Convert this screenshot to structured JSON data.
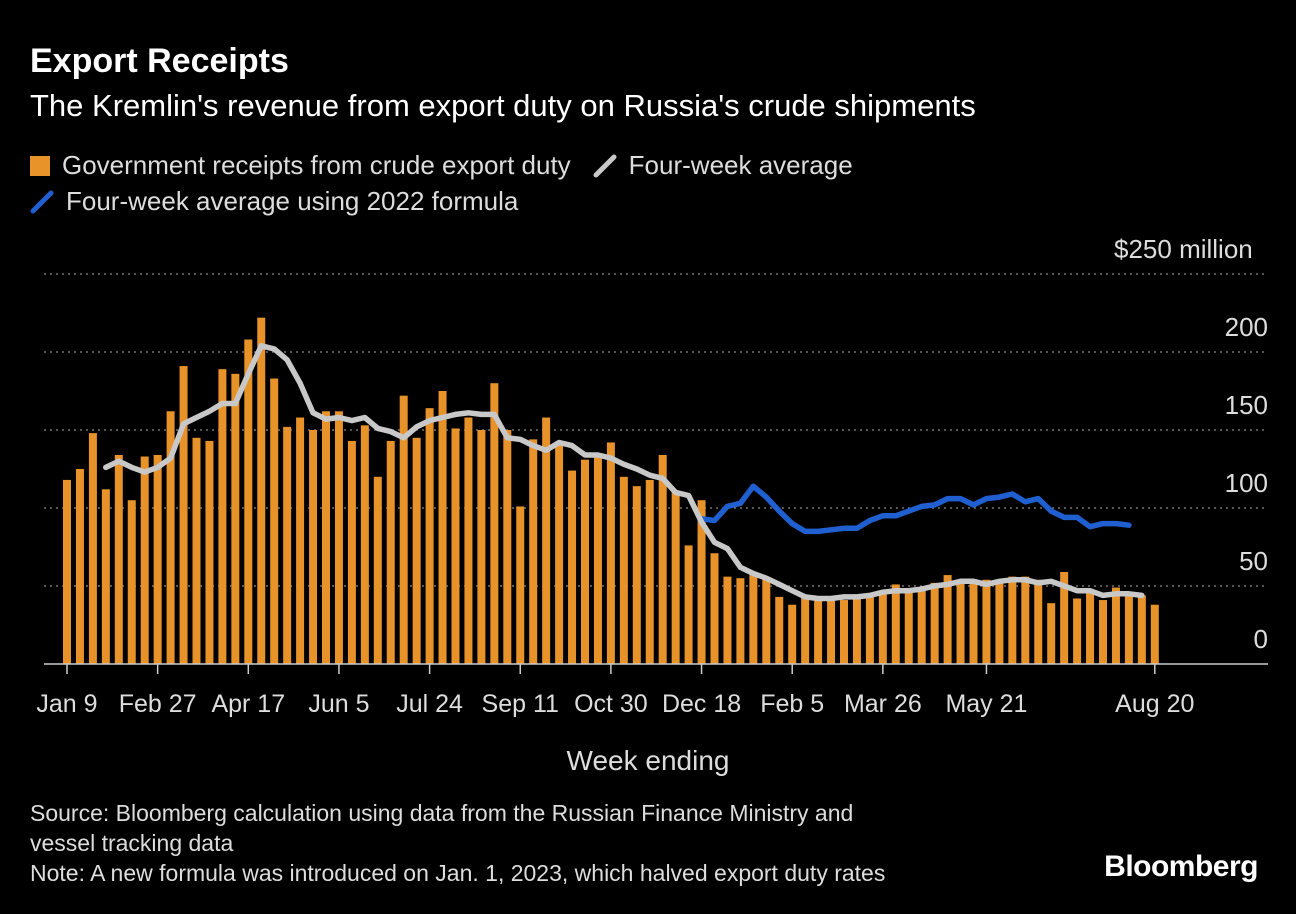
{
  "header": {
    "title": "Export Receipts",
    "subtitle": "The Kremlin's revenue from export duty on Russia's crude shipments"
  },
  "legend": {
    "bars": "Government receipts from crude export duty",
    "avg": "Four-week average",
    "avg2022": "Four-week average using 2022 formula"
  },
  "colors": {
    "bars": "#e8922a",
    "avg": "#c8c8c8",
    "avg2022": "#1f5fd0",
    "grid": "#8a8a8a",
    "text": "#dddddd"
  },
  "footer": {
    "source_line1": "Source: Bloomberg calculation using data from the Russian Finance Ministry and",
    "source_line2": "vessel tracking data",
    "note": "Note: A new formula was introduced on Jan. 1, 2023, which halved export duty rates",
    "brand": "Bloomberg"
  },
  "chart_data": {
    "type": "bar",
    "title": "Export Receipts",
    "xlabel": "Week ending",
    "ylabel": "",
    "y_unit_label": "$250 million",
    "ylim": [
      0,
      250
    ],
    "yticks": [
      0,
      50,
      100,
      150,
      200,
      250
    ],
    "ytick_labels": [
      "0",
      "50",
      "100",
      "150",
      "200",
      "$250"
    ],
    "x_tick_labels": [
      "Jan 9",
      "Feb 27",
      "Apr 17",
      "Jun 5",
      "Jul 24",
      "Sep 11",
      "Oct 30",
      "Dec 18",
      "Feb 5",
      "Mar 26",
      "May 21",
      "Aug 20"
    ],
    "x_tick_indices": [
      0,
      7,
      14,
      21,
      28,
      35,
      42,
      49,
      56,
      63,
      71,
      84
    ],
    "grid": true,
    "series": [
      {
        "name": "Government receipts from crude export duty",
        "type": "bar",
        "values": [
          118,
          125,
          148,
          112,
          134,
          105,
          133,
          134,
          162,
          191,
          145,
          143,
          189,
          186,
          208,
          222,
          183,
          152,
          158,
          150,
          162,
          162,
          143,
          153,
          120,
          143,
          172,
          145,
          164,
          175,
          151,
          158,
          150,
          180,
          150,
          101,
          144,
          158,
          142,
          124,
          131,
          133,
          142,
          120,
          114,
          118,
          134,
          111,
          76,
          105,
          71,
          56,
          55,
          57,
          54,
          43,
          38,
          43,
          43,
          42,
          41,
          44,
          44,
          46,
          51,
          48,
          49,
          52,
          57,
          53,
          54,
          54,
          52,
          56,
          56,
          54,
          39,
          59,
          42,
          46,
          41,
          49,
          46,
          44,
          38
        ]
      },
      {
        "name": "Four-week average",
        "type": "line",
        "x_start_index": 3,
        "values": [
          126,
          130,
          126,
          123,
          126,
          132,
          154,
          158,
          162,
          167,
          167,
          186,
          204,
          202,
          195,
          180,
          161,
          157,
          158,
          156,
          158,
          151,
          149,
          145,
          152,
          156,
          158,
          160,
          161,
          160,
          160,
          145,
          144,
          140,
          137,
          142,
          140,
          134,
          134,
          132,
          128,
          125,
          121,
          119,
          110,
          108,
          91,
          78,
          74,
          62,
          58,
          55,
          51,
          47,
          43,
          42,
          42,
          43,
          43,
          44,
          46,
          47,
          47,
          48,
          50,
          51,
          53,
          53,
          51,
          53,
          54,
          54,
          52,
          53,
          50,
          47,
          47,
          44,
          45,
          45,
          44
        ]
      },
      {
        "name": "Four-week average using 2022 formula",
        "type": "line",
        "x_start_index": 49,
        "values": [
          93,
          92,
          101,
          103,
          114,
          107,
          98,
          90,
          85,
          85,
          86,
          87,
          87,
          92,
          95,
          95,
          98,
          101,
          102,
          106,
          106,
          102,
          106,
          107,
          109,
          104,
          106,
          98,
          94,
          94,
          88,
          90,
          90,
          89
        ]
      }
    ]
  }
}
